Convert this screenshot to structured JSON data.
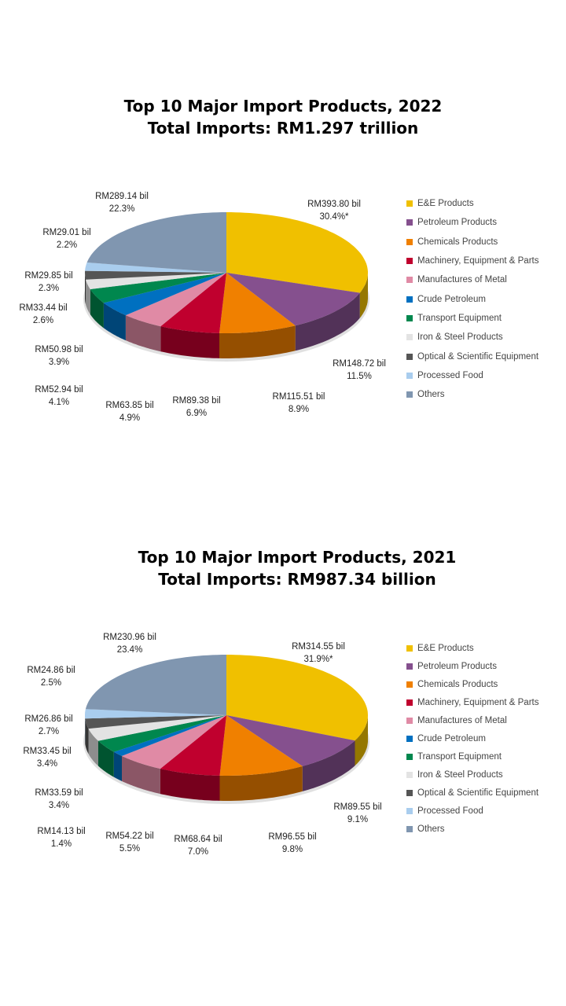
{
  "chart_data": [
    {
      "type": "pie",
      "title": "Top 10 Major Import Products, 2022",
      "subtitle": "Total Imports: RM1.297 trillion",
      "categories": [
        "E&E Products",
        "Petroleum Products",
        "Chemicals Products",
        "Machinery, Equipment & Parts",
        "Manufactures of Metal",
        "Crude Petroleum",
        "Transport Equipment",
        "Iron & Steel Products",
        "Optical & Scientific Equipment",
        "Processed Food",
        "Others"
      ],
      "values": [
        393.8,
        148.72,
        115.51,
        89.38,
        63.85,
        52.94,
        50.98,
        33.44,
        29.85,
        29.01,
        289.14
      ],
      "value_labels": [
        "RM393.80 bil",
        "RM148.72 bil",
        "RM115.51 bil",
        "RM89.38 bil",
        "RM63.85 bil",
        "RM52.94 bil",
        "RM50.98 bil",
        "RM33.44 bil",
        "RM29.85 bil",
        "RM29.01 bil",
        "RM289.14 bil"
      ],
      "percent_labels": [
        "30.4%*",
        "11.5%",
        "8.9%",
        "6.9%",
        "4.9%",
        "4.1%",
        "3.9%",
        "2.6%",
        "2.3%",
        "2.2%",
        "22.3%"
      ],
      "percents": [
        30.4,
        11.5,
        8.9,
        6.9,
        4.9,
        4.1,
        3.9,
        2.6,
        2.3,
        2.2,
        22.3
      ],
      "legend_position": "right"
    },
    {
      "type": "pie",
      "title": "Top 10 Major Import Products, 2021",
      "subtitle": "Total Imports: RM987.34 billion",
      "categories": [
        "E&E Products",
        "Petroleum Products",
        "Chemicals Products",
        "Machinery, Equipment & Parts",
        "Manufactures of Metal",
        "Crude Petroleum",
        "Transport Equipment",
        "Iron & Steel Products",
        "Optical & Scientific Equipment",
        "Processed Food",
        "Others"
      ],
      "values": [
        314.55,
        89.55,
        96.55,
        68.64,
        54.22,
        14.13,
        33.59,
        33.45,
        26.86,
        24.86,
        230.96
      ],
      "value_labels": [
        "RM314.55 bil",
        "RM89.55 bil",
        "RM96.55 bil",
        "RM68.64 bil",
        "RM54.22 bil",
        "RM14.13 bil",
        "RM33.59 bil",
        "RM33.45 bil",
        "RM26.86 bil",
        "RM24.86 bil",
        "RM230.96 bil"
      ],
      "percent_labels": [
        "31.9%*",
        "9.1%",
        "9.8%",
        "7.0%",
        "5.5%",
        "1.4%",
        "3.4%",
        "3.4%",
        "2.7%",
        "2.5%",
        "23.4%"
      ],
      "percents": [
        31.9,
        9.1,
        9.8,
        7.0,
        5.5,
        1.4,
        3.4,
        3.4,
        2.7,
        2.5,
        23.4
      ],
      "legend_position": "right"
    }
  ],
  "colors": [
    "#F0C000",
    "#85508E",
    "#F08000",
    "#C0002E",
    "#E08AA5",
    "#0070C0",
    "#00874E",
    "#E3E3E3",
    "#555555",
    "#A9CDEE",
    "#8096B0"
  ]
}
